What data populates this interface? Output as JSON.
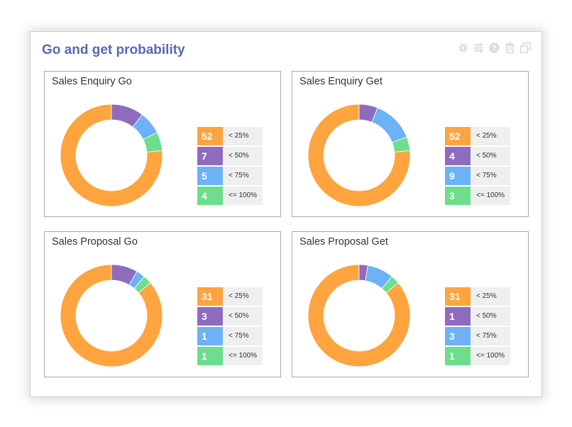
{
  "window": {
    "title": "Go and get probability"
  },
  "toolbar_icons": [
    "gear-icon",
    "sliders-icon",
    "help-icon",
    "trash-icon",
    "window-restore-icon"
  ],
  "colors": {
    "title": "#5668b8",
    "series": [
      "#ffa43f",
      "#8f6bbe",
      "#6db1f7",
      "#6cde8c"
    ]
  },
  "chart_data": [
    {
      "type": "pie",
      "title": "Sales Enquiry Go",
      "categories": [
        "< 25%",
        "< 50%",
        "< 75%",
        "<= 100%"
      ],
      "values": [
        52,
        7,
        5,
        4
      ]
    },
    {
      "type": "pie",
      "title": "Sales Enquiry Get",
      "categories": [
        "< 25%",
        "< 50%",
        "< 75%",
        "<= 100%"
      ],
      "values": [
        52,
        4,
        9,
        3
      ]
    },
    {
      "type": "pie",
      "title": "Sales Proposal Go",
      "categories": [
        "< 25%",
        "< 50%",
        "< 75%",
        "<= 100%"
      ],
      "values": [
        31,
        3,
        1,
        1
      ]
    },
    {
      "type": "pie",
      "title": "Sales Proposal Get",
      "categories": [
        "< 25%",
        "< 50%",
        "< 75%",
        "<= 100%"
      ],
      "values": [
        31,
        1,
        3,
        1
      ]
    }
  ]
}
